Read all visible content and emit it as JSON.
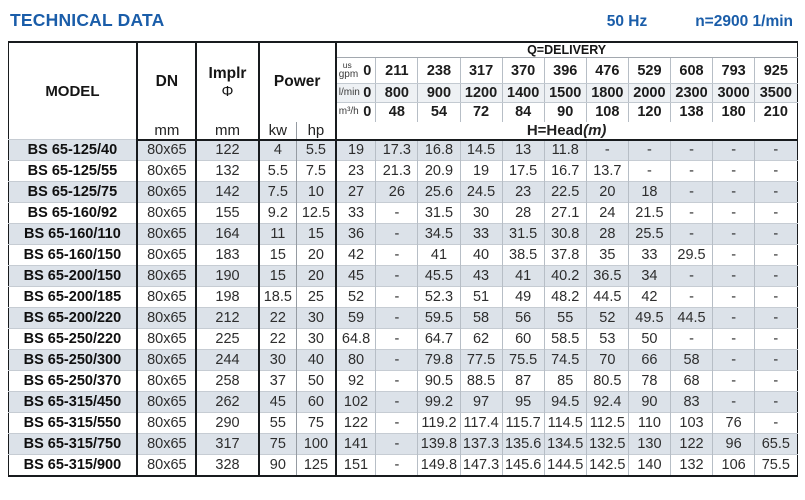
{
  "header": {
    "title": "TECHNICAL DATA",
    "frequency": "50 Hz",
    "speed": "n=2900 1/min"
  },
  "colors": {
    "accent_blue": "#1a5da9",
    "stripe_row": "#dce2e9",
    "border_dark": "#181b1e"
  },
  "table": {
    "col_headers": {
      "model": "MODEL",
      "dn": "DN",
      "implr_line1": "Implr",
      "implr_line2": "Φ",
      "power": "Power",
      "dn_unit": "mm",
      "implr_unit": "mm",
      "kw": "kw",
      "hp": "hp",
      "delivery_title": "Q=DELIVERY",
      "head_title": "H=Head",
      "head_unit": "(m)",
      "gpm_label_top": "us",
      "gpm_label": "gpm",
      "lmin_label": "l/min",
      "m3h_label": "m³/h",
      "gpm_values": [
        "0",
        "211",
        "238",
        "317",
        "370",
        "396",
        "476",
        "529",
        "608",
        "793",
        "925"
      ],
      "lmin_values": [
        "0",
        "800",
        "900",
        "1200",
        "1400",
        "1500",
        "1800",
        "2000",
        "2300",
        "3000",
        "3500"
      ],
      "m3h_values": [
        "0",
        "48",
        "54",
        "72",
        "84",
        "90",
        "108",
        "120",
        "138",
        "180",
        "210"
      ]
    },
    "rows": [
      {
        "model": "BS 65-125/40",
        "dn": "80x65",
        "implr": "122",
        "kw": "4",
        "hp": "5.5",
        "head": [
          "19",
          "17.3",
          "16.8",
          "14.5",
          "13",
          "11.8",
          "-",
          "-",
          "-",
          "-",
          "-"
        ]
      },
      {
        "model": "BS 65-125/55",
        "dn": "80x65",
        "implr": "132",
        "kw": "5.5",
        "hp": "7.5",
        "head": [
          "23",
          "21.3",
          "20.9",
          "19",
          "17.5",
          "16.7",
          "13.7",
          "-",
          "-",
          "-",
          "-"
        ]
      },
      {
        "model": "BS 65-125/75",
        "dn": "80x65",
        "implr": "142",
        "kw": "7.5",
        "hp": "10",
        "head": [
          "27",
          "26",
          "25.6",
          "24.5",
          "23",
          "22.5",
          "20",
          "18",
          "-",
          "-",
          "-"
        ]
      },
      {
        "model": "BS 65-160/92",
        "dn": "80x65",
        "implr": "155",
        "kw": "9.2",
        "hp": "12.5",
        "head": [
          "33",
          "-",
          "31.5",
          "30",
          "28",
          "27.1",
          "24",
          "21.5",
          "-",
          "-",
          "-"
        ]
      },
      {
        "model": "BS 65-160/110",
        "dn": "80x65",
        "implr": "164",
        "kw": "11",
        "hp": "15",
        "head": [
          "36",
          "-",
          "34.5",
          "33",
          "31.5",
          "30.8",
          "28",
          "25.5",
          "-",
          "-",
          "-"
        ]
      },
      {
        "model": "BS 65-160/150",
        "dn": "80x65",
        "implr": "183",
        "kw": "15",
        "hp": "20",
        "head": [
          "42",
          "-",
          "41",
          "40",
          "38.5",
          "37.8",
          "35",
          "33",
          "29.5",
          "-",
          "-"
        ]
      },
      {
        "model": "BS 65-200/150",
        "dn": "80x65",
        "implr": "190",
        "kw": "15",
        "hp": "20",
        "head": [
          "45",
          "-",
          "45.5",
          "43",
          "41",
          "40.2",
          "36.5",
          "34",
          "-",
          "-",
          "-"
        ]
      },
      {
        "model": "BS 65-200/185",
        "dn": "80x65",
        "implr": "198",
        "kw": "18.5",
        "hp": "25",
        "head": [
          "52",
          "-",
          "52.3",
          "51",
          "49",
          "48.2",
          "44.5",
          "42",
          "-",
          "-",
          "-"
        ]
      },
      {
        "model": "BS 65-200/220",
        "dn": "80x65",
        "implr": "212",
        "kw": "22",
        "hp": "30",
        "head": [
          "59",
          "-",
          "59.5",
          "58",
          "56",
          "55",
          "52",
          "49.5",
          "44.5",
          "-",
          "-"
        ]
      },
      {
        "model": "BS 65-250/220",
        "dn": "80x65",
        "implr": "225",
        "kw": "22",
        "hp": "30",
        "head": [
          "64.8",
          "-",
          "64.7",
          "62",
          "60",
          "58.5",
          "53",
          "50",
          "-",
          "-",
          "-"
        ]
      },
      {
        "model": "BS 65-250/300",
        "dn": "80x65",
        "implr": "244",
        "kw": "30",
        "hp": "40",
        "head": [
          "80",
          "-",
          "79.8",
          "77.5",
          "75.5",
          "74.5",
          "70",
          "66",
          "58",
          "-",
          "-"
        ]
      },
      {
        "model": "BS 65-250/370",
        "dn": "80x65",
        "implr": "258",
        "kw": "37",
        "hp": "50",
        "head": [
          "92",
          "-",
          "90.5",
          "88.5",
          "87",
          "85",
          "80.5",
          "78",
          "68",
          "-",
          "-"
        ]
      },
      {
        "model": "BS 65-315/450",
        "dn": "80x65",
        "implr": "262",
        "kw": "45",
        "hp": "60",
        "head": [
          "102",
          "-",
          "99.2",
          "97",
          "95",
          "94.5",
          "92.4",
          "90",
          "83",
          "-",
          "-"
        ]
      },
      {
        "model": "BS 65-315/550",
        "dn": "80x65",
        "implr": "290",
        "kw": "55",
        "hp": "75",
        "head": [
          "122",
          "-",
          "119.2",
          "117.4",
          "115.7",
          "114.5",
          "112.5",
          "110",
          "103",
          "76",
          "-"
        ]
      },
      {
        "model": "BS 65-315/750",
        "dn": "80x65",
        "implr": "317",
        "kw": "75",
        "hp": "100",
        "head": [
          "141",
          "-",
          "139.8",
          "137.3",
          "135.6",
          "134.5",
          "132.5",
          "130",
          "122",
          "96",
          "65.5"
        ]
      },
      {
        "model": "BS 65-315/900",
        "dn": "80x65",
        "implr": "328",
        "kw": "90",
        "hp": "125",
        "head": [
          "151",
          "-",
          "149.8",
          "147.3",
          "145.6",
          "144.5",
          "142.5",
          "140",
          "132",
          "106",
          "75.5"
        ]
      }
    ]
  }
}
